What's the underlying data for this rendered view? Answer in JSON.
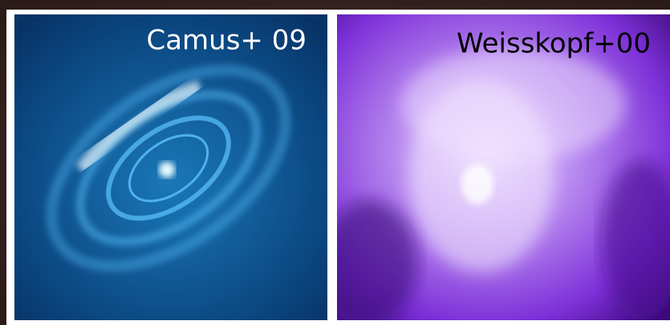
{
  "panels": [
    {
      "label": "Camus+ 09"
    },
    {
      "label": "Weisskopf+00"
    }
  ]
}
